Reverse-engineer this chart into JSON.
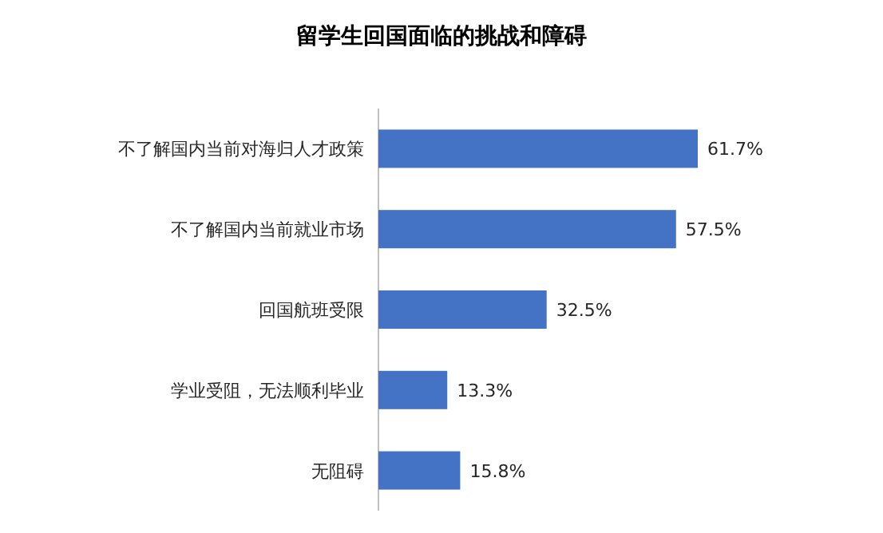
{
  "chart_data": {
    "type": "bar",
    "orientation": "horizontal",
    "title": "留学生回国面临的挑战和障碍",
    "categories": [
      "不了解国内当前对海归人才政策",
      "不了解国内当前就业市场",
      "回国航班受限",
      "学业受阻，无法顺利毕业",
      "无阻碍"
    ],
    "values": [
      61.7,
      57.5,
      32.5,
      13.3,
      15.8
    ],
    "value_labels": [
      "61.7%",
      "57.5%",
      "32.5%",
      "13.3%",
      "15.8%"
    ],
    "color": "#4472c4"
  }
}
